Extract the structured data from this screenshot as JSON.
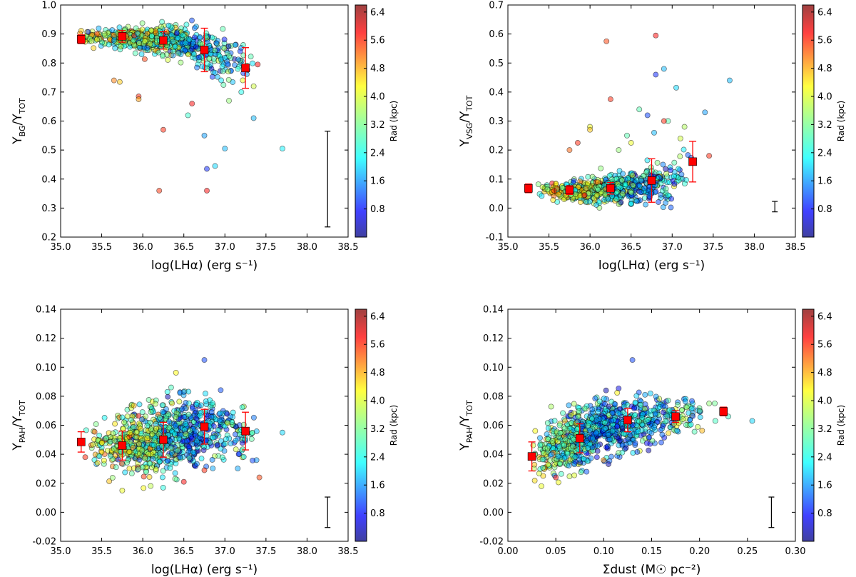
{
  "colorbar": {
    "label": "Rad (kpc)",
    "ticks": [
      "0.8",
      "1.6",
      "2.4",
      "3.2",
      "4.0",
      "4.8",
      "5.6",
      "6.4"
    ],
    "range": [
      0,
      6.6
    ],
    "colormap": "jet"
  },
  "chart_data": [
    {
      "type": "scatter",
      "id": "bg",
      "ylabel": {
        "main": "Y",
        "num": "BG",
        "den": "TOT"
      },
      "xlabel": "log(LHα) (erg s⁻¹)",
      "xlim": [
        35.0,
        38.5
      ],
      "ylim": [
        0.2,
        1.0
      ],
      "xticks": [
        "35.0",
        "35.5",
        "36.0",
        "36.5",
        "37.0",
        "37.5",
        "38.0",
        "38.5"
      ],
      "yticks": [
        "0.2",
        "0.3",
        "0.4",
        "0.5",
        "0.6",
        "0.7",
        "0.8",
        "0.9",
        "1.0"
      ],
      "binned": [
        {
          "x": 35.25,
          "y": 0.882,
          "err": 0.015
        },
        {
          "x": 35.75,
          "y": 0.892,
          "err": 0.02
        },
        {
          "x": 36.25,
          "y": 0.878,
          "err": 0.03
        },
        {
          "x": 36.75,
          "y": 0.845,
          "err": 0.075
        },
        {
          "x": 37.25,
          "y": 0.783,
          "err": 0.07
        }
      ],
      "typical_error": {
        "x": 38.25,
        "y": 0.4,
        "err": 0.165
      },
      "cloud": {
        "count": 700,
        "xmin": 35.2,
        "xmax": 37.4,
        "xmode": 36.1,
        "ycenter": [
          [
            35.2,
            0.89
          ],
          [
            36.0,
            0.885
          ],
          [
            36.5,
            0.87
          ],
          [
            37.0,
            0.82
          ],
          [
            37.4,
            0.78
          ]
        ],
        "yspread": [
          [
            35.2,
            0.012
          ],
          [
            36.0,
            0.018
          ],
          [
            36.5,
            0.025
          ],
          [
            37.0,
            0.04
          ],
          [
            37.4,
            0.04
          ]
        ],
        "rad_center": [
          [
            35.2,
            3.8
          ],
          [
            36.0,
            3.5
          ],
          [
            36.6,
            2.2
          ],
          [
            37.4,
            2.0
          ]
        ]
      },
      "outliers": [
        [
          35.65,
          0.74,
          5.0
        ],
        [
          35.72,
          0.735,
          4.5
        ],
        [
          35.95,
          0.685,
          5.6
        ],
        [
          35.95,
          0.675,
          4.8
        ],
        [
          36.2,
          0.36,
          5.5
        ],
        [
          36.25,
          0.57,
          5.6
        ],
        [
          36.55,
          0.62,
          2.8
        ],
        [
          36.6,
          0.66,
          5.8
        ],
        [
          36.75,
          0.55,
          1.8
        ],
        [
          36.78,
          0.435,
          1.0
        ],
        [
          36.78,
          0.36,
          5.8
        ],
        [
          36.88,
          0.445,
          2.2
        ],
        [
          37.0,
          0.505,
          2.0
        ],
        [
          37.05,
          0.67,
          3.4
        ],
        [
          37.2,
          0.7,
          2.6
        ],
        [
          37.35,
          0.61,
          2.0
        ],
        [
          37.7,
          0.505,
          2.4
        ],
        [
          37.4,
          0.795,
          5.8
        ],
        [
          37.35,
          0.72,
          3.8
        ]
      ]
    },
    {
      "type": "scatter",
      "id": "vsg",
      "ylabel": {
        "main": "Y",
        "num": "VSG",
        "den": "TOT"
      },
      "xlabel": "log(LHα) (erg s⁻¹)",
      "xlim": [
        35.0,
        38.5
      ],
      "ylim": [
        -0.1,
        0.7
      ],
      "xticks": [
        "35.0",
        "35.5",
        "36.0",
        "36.5",
        "37.0",
        "37.5",
        "38.0",
        "38.5"
      ],
      "yticks": [
        "-0.1",
        "0.0",
        "0.1",
        "0.2",
        "0.3",
        "0.4",
        "0.5",
        "0.6",
        "0.7"
      ],
      "binned": [
        {
          "x": 35.25,
          "y": 0.068,
          "err": 0.015
        },
        {
          "x": 35.75,
          "y": 0.062,
          "err": 0.015
        },
        {
          "x": 36.25,
          "y": 0.068,
          "err": 0.02
        },
        {
          "x": 36.75,
          "y": 0.095,
          "err": 0.075
        },
        {
          "x": 37.25,
          "y": 0.16,
          "err": 0.07
        }
      ],
      "typical_error": {
        "x": 38.25,
        "y": 0.005,
        "err": 0.018
      },
      "cloud": {
        "count": 700,
        "xmin": 35.3,
        "xmax": 37.3,
        "xmode": 36.1,
        "ycenter": [
          [
            35.3,
            0.06
          ],
          [
            36.0,
            0.06
          ],
          [
            36.5,
            0.07
          ],
          [
            37.0,
            0.1
          ],
          [
            37.3,
            0.14
          ]
        ],
        "yspread": [
          [
            35.3,
            0.012
          ],
          [
            36.0,
            0.018
          ],
          [
            36.5,
            0.025
          ],
          [
            37.0,
            0.04
          ],
          [
            37.3,
            0.05
          ]
        ],
        "rad_center": [
          [
            35.3,
            3.8
          ],
          [
            36.0,
            3.5
          ],
          [
            36.6,
            2.0
          ],
          [
            37.3,
            2.4
          ]
        ]
      },
      "outliers": [
        [
          35.75,
          0.2,
          5.2
        ],
        [
          35.85,
          0.225,
          5.6
        ],
        [
          36.0,
          0.28,
          4.0
        ],
        [
          36.0,
          0.27,
          4.5
        ],
        [
          36.2,
          0.575,
          5.4
        ],
        [
          36.25,
          0.375,
          5.6
        ],
        [
          36.35,
          0.2,
          3.4
        ],
        [
          36.45,
          0.25,
          3.0
        ],
        [
          36.5,
          0.225,
          4.0
        ],
        [
          36.6,
          0.34,
          3.0
        ],
        [
          36.7,
          0.32,
          1.2
        ],
        [
          36.78,
          0.26,
          2.0
        ],
        [
          36.8,
          0.595,
          5.8
        ],
        [
          36.8,
          0.46,
          1.0
        ],
        [
          36.9,
          0.48,
          2.0
        ],
        [
          36.95,
          0.3,
          3.0
        ],
        [
          37.05,
          0.415,
          2.2
        ],
        [
          37.1,
          0.24,
          3.8
        ],
        [
          37.15,
          0.28,
          3.6
        ],
        [
          37.4,
          0.33,
          1.8
        ],
        [
          37.7,
          0.44,
          2.0
        ],
        [
          37.45,
          0.18,
          5.6
        ],
        [
          36.9,
          0.3,
          5.6
        ]
      ]
    },
    {
      "type": "scatter",
      "id": "pah-lha",
      "ylabel": {
        "main": "Y",
        "num": "PAH",
        "den": "TOT"
      },
      "xlabel": "log(LHα) (erg s⁻¹)",
      "xlim": [
        35.0,
        38.5
      ],
      "ylim": [
        -0.02,
        0.14
      ],
      "xticks": [
        "35.0",
        "35.5",
        "36.0",
        "36.5",
        "37.0",
        "37.5",
        "38.0",
        "38.5"
      ],
      "yticks": [
        "-0.02",
        "0.00",
        "0.02",
        "0.04",
        "0.06",
        "0.08",
        "0.10",
        "0.12",
        "0.14"
      ],
      "binned": [
        {
          "x": 35.25,
          "y": 0.0485,
          "err": 0.007
        },
        {
          "x": 35.75,
          "y": 0.046,
          "err": 0.01
        },
        {
          "x": 36.25,
          "y": 0.05,
          "err": 0.012
        },
        {
          "x": 36.75,
          "y": 0.059,
          "err": 0.012
        },
        {
          "x": 37.25,
          "y": 0.056,
          "err": 0.013
        }
      ],
      "typical_error": {
        "x": 38.25,
        "y": 0.0,
        "err": 0.0105
      },
      "cloud": {
        "count": 900,
        "xmin": 35.3,
        "xmax": 37.4,
        "xmode": 36.1,
        "ycenter": [
          [
            35.3,
            0.045
          ],
          [
            36.0,
            0.047
          ],
          [
            36.5,
            0.055
          ],
          [
            37.0,
            0.058
          ],
          [
            37.4,
            0.052
          ]
        ],
        "yspread": [
          [
            35.3,
            0.008
          ],
          [
            36.0,
            0.011
          ],
          [
            36.5,
            0.012
          ],
          [
            37.0,
            0.01
          ],
          [
            37.4,
            0.01
          ]
        ],
        "rad_center": [
          [
            35.3,
            3.8
          ],
          [
            36.0,
            3.4
          ],
          [
            36.6,
            1.6
          ],
          [
            37.4,
            2.6
          ]
        ]
      },
      "outliers": [
        [
          36.75,
          0.105,
          1.2
        ],
        [
          36.5,
          0.083,
          1.6
        ],
        [
          36.3,
          0.083,
          2.6
        ],
        [
          37.7,
          0.055,
          2.2
        ],
        [
          37.42,
          0.024,
          5.4
        ],
        [
          35.3,
          0.038,
          5.6
        ],
        [
          36.5,
          0.021,
          5.8
        ],
        [
          36.75,
          0.029,
          5.6
        ],
        [
          35.75,
          0.015,
          4.0
        ]
      ]
    },
    {
      "type": "scatter",
      "id": "pah-dust",
      "ylabel": {
        "main": "Y",
        "num": "PAH",
        "den": "TOT"
      },
      "xlabel": "Σdust (M☉ pc⁻²)",
      "xlim": [
        0.0,
        0.3
      ],
      "ylim": [
        -0.02,
        0.14
      ],
      "xticks": [
        "0.00",
        "0.05",
        "0.10",
        "0.15",
        "0.20",
        "0.25",
        "0.30"
      ],
      "yticks": [
        "-0.02",
        "0.00",
        "0.02",
        "0.04",
        "0.06",
        "0.08",
        "0.10",
        "0.12",
        "0.14"
      ],
      "binned": [
        {
          "x": 0.025,
          "y": 0.0385,
          "err": 0.01
        },
        {
          "x": 0.075,
          "y": 0.051,
          "err": 0.01
        },
        {
          "x": 0.125,
          "y": 0.0635,
          "err": 0.008
        },
        {
          "x": 0.175,
          "y": 0.066,
          "err": 0.004
        },
        {
          "x": 0.225,
          "y": 0.0695,
          "err": 0.003
        }
      ],
      "typical_error": {
        "x": 0.275,
        "y": 0.0,
        "err": 0.0105
      },
      "cloud": {
        "count": 900,
        "xmin": 0.02,
        "xmax": 0.22,
        "xmode": 0.07,
        "ycenter": [
          [
            0.02,
            0.035
          ],
          [
            0.05,
            0.045
          ],
          [
            0.1,
            0.058
          ],
          [
            0.15,
            0.063
          ],
          [
            0.22,
            0.068
          ]
        ],
        "yspread": [
          [
            0.02,
            0.008
          ],
          [
            0.05,
            0.01
          ],
          [
            0.1,
            0.01
          ],
          [
            0.15,
            0.008
          ],
          [
            0.22,
            0.005
          ]
        ],
        "rad_center": [
          [
            0.02,
            3.6
          ],
          [
            0.06,
            3.0
          ],
          [
            0.1,
            1.8
          ],
          [
            0.16,
            2.2
          ],
          [
            0.22,
            3.0
          ]
        ]
      },
      "outliers": [
        [
          0.13,
          0.105,
          1.2
        ],
        [
          0.255,
          0.063,
          2.2
        ],
        [
          0.21,
          0.075,
          3.4
        ],
        [
          0.23,
          0.066,
          2.8
        ],
        [
          0.2,
          0.07,
          3.2
        ],
        [
          0.05,
          0.024,
          5.8
        ],
        [
          0.1,
          0.036,
          4.8
        ],
        [
          0.035,
          0.018,
          4.0
        ]
      ]
    }
  ]
}
